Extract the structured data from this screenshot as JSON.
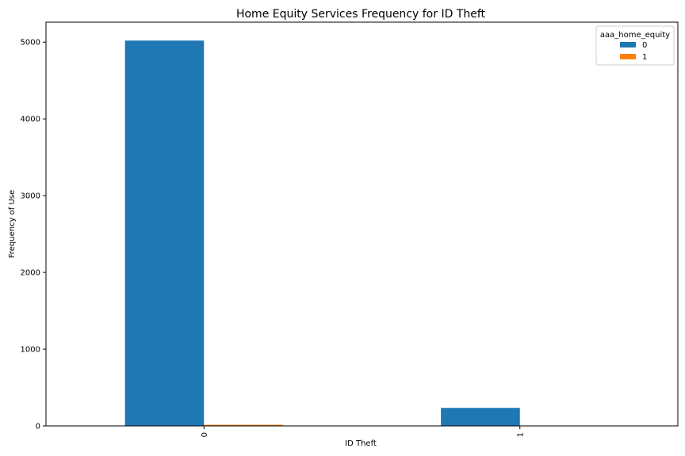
{
  "chart_data": {
    "type": "bar",
    "title": "Home Equity Services Frequency for ID Theft",
    "xlabel": "ID Theft",
    "ylabel": "Frequency of Use",
    "categories": [
      "0",
      "1"
    ],
    "series": [
      {
        "name": "0",
        "color": "#1f77b4",
        "values": [
          5020,
          235
        ]
      },
      {
        "name": "1",
        "color": "#ff7f0e",
        "values": [
          15,
          3
        ]
      }
    ],
    "ylim": [
      0,
      5260
    ],
    "yticks": [
      0,
      1000,
      2000,
      3000,
      4000,
      5000
    ],
    "legend": {
      "title": "aaa_home_equity",
      "placement": "top-right"
    },
    "grid": false
  }
}
